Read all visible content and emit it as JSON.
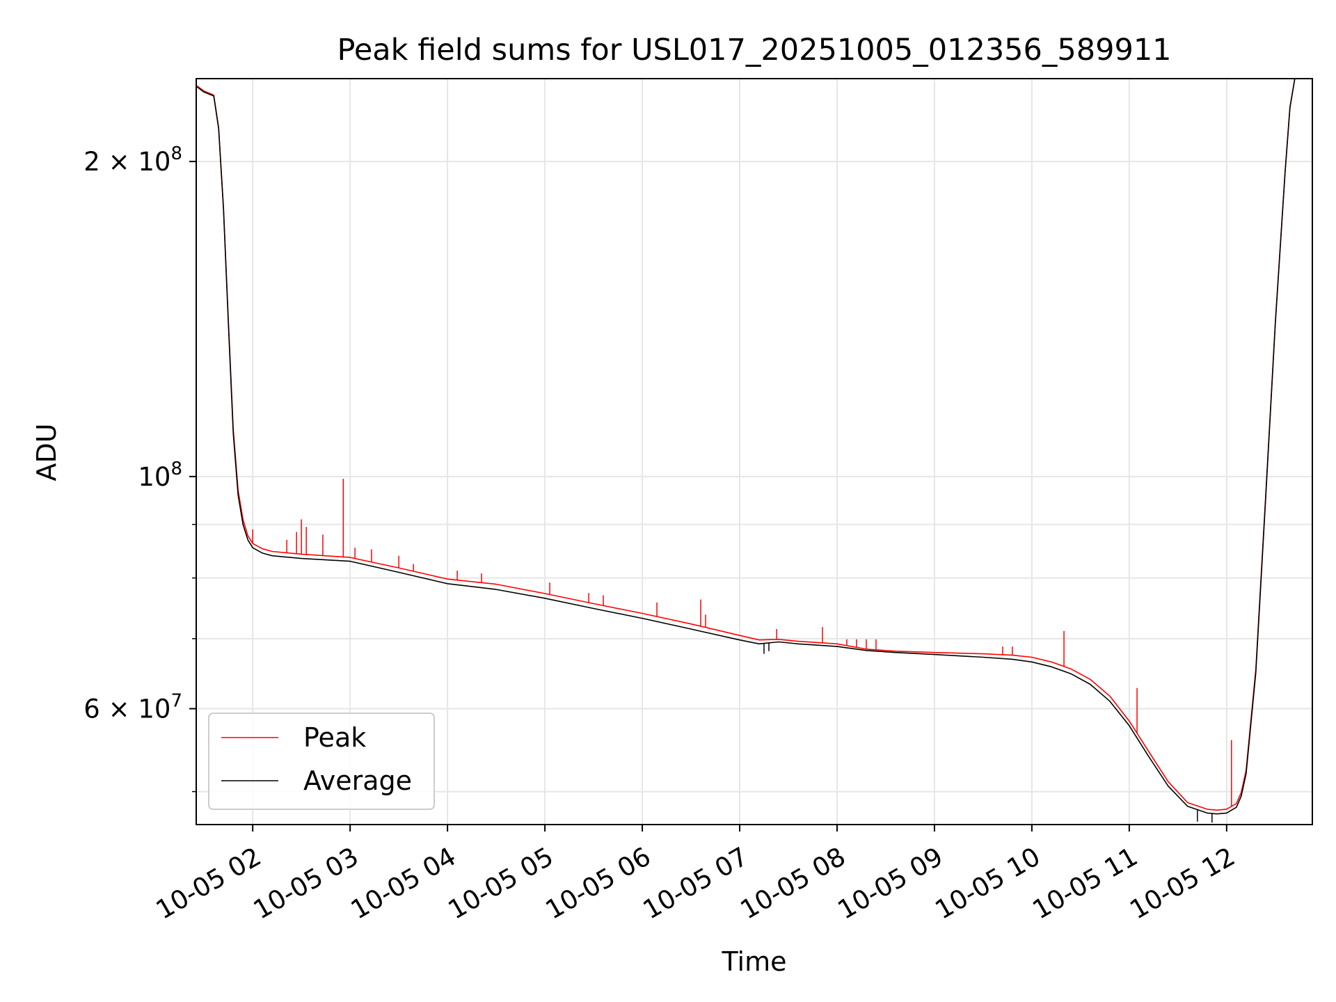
{
  "chart_data": {
    "type": "line",
    "title": "Peak field sums for USL017_20251005_012356_589911",
    "xlabel": "Time",
    "ylabel": "ADU",
    "yscale": "log",
    "xlim": [
      1.42,
      12.88
    ],
    "ylim": [
      46500000,
      240000000
    ],
    "grid": true,
    "x_ticks": [
      {
        "value": 2,
        "label": "10-05 02"
      },
      {
        "value": 3,
        "label": "10-05 03"
      },
      {
        "value": 4,
        "label": "10-05 04"
      },
      {
        "value": 5,
        "label": "10-05 05"
      },
      {
        "value": 6,
        "label": "10-05 06"
      },
      {
        "value": 7,
        "label": "10-05 07"
      },
      {
        "value": 8,
        "label": "10-05 08"
      },
      {
        "value": 9,
        "label": "10-05 09"
      },
      {
        "value": 10,
        "label": "10-05 10"
      },
      {
        "value": 11,
        "label": "10-05 11"
      },
      {
        "value": 12,
        "label": "10-05 12"
      }
    ],
    "y_major_ticks": [
      {
        "value": 200000000,
        "mantissa": "2",
        "times": "×",
        "base": "10",
        "exp": "8"
      },
      {
        "value": 100000000,
        "mantissa": "",
        "times": "",
        "base": "10",
        "exp": "8"
      },
      {
        "value": 60000000,
        "mantissa": "6",
        "times": "×",
        "base": "10",
        "exp": "7"
      }
    ],
    "y_minor_gridlines": [
      50000000,
      70000000,
      80000000,
      90000000
    ],
    "legend": {
      "location": "lower-left",
      "entries": [
        {
          "label": "Peak",
          "color": "#ff0000"
        },
        {
          "label": "Average",
          "color": "#000000"
        }
      ]
    },
    "series": [
      {
        "name": "Average",
        "color": "#000000",
        "x": [
          1.42,
          1.5,
          1.6,
          1.65,
          1.7,
          1.75,
          1.8,
          1.85,
          1.9,
          1.95,
          2.0,
          2.1,
          2.2,
          2.5,
          3.0,
          3.5,
          4.0,
          4.5,
          5.0,
          5.5,
          6.0,
          6.5,
          7.0,
          7.2,
          7.4,
          7.6,
          8.0,
          8.3,
          8.6,
          9.0,
          9.5,
          9.8,
          10.0,
          10.2,
          10.4,
          10.6,
          10.8,
          11.0,
          11.2,
          11.4,
          11.6,
          11.8,
          11.9,
          12.0,
          12.1,
          12.15,
          12.2,
          12.3,
          12.4,
          12.5,
          12.6,
          12.65,
          12.7,
          12.88
        ],
        "values": [
          236000000,
          233000000,
          231000000,
          215000000,
          180000000,
          140000000,
          110000000,
          96000000,
          90000000,
          87000000,
          85500000,
          84500000,
          84000000,
          83500000,
          83000000,
          81000000,
          79000000,
          78000000,
          76500000,
          74800000,
          73200000,
          71500000,
          69800000,
          69200000,
          69500000,
          69200000,
          68800000,
          68200000,
          67900000,
          67600000,
          67200000,
          66900000,
          66500000,
          65800000,
          64800000,
          63300000,
          61000000,
          57800000,
          54000000,
          50600000,
          48400000,
          47700000,
          47600000,
          47700000,
          48300000,
          49500000,
          52000000,
          65000000,
          95000000,
          140000000,
          195000000,
          225000000,
          240000000,
          240000000
        ]
      },
      {
        "name": "Peak",
        "color": "#ff0000",
        "x": [
          1.42,
          1.5,
          1.6,
          1.65,
          1.7,
          1.75,
          1.8,
          1.85,
          1.9,
          1.95,
          2.0,
          2.1,
          2.2,
          2.5,
          3.0,
          3.5,
          4.0,
          4.5,
          5.0,
          5.5,
          6.0,
          6.5,
          7.0,
          7.2,
          7.4,
          7.6,
          8.0,
          8.3,
          8.6,
          9.0,
          9.5,
          9.8,
          10.0,
          10.2,
          10.4,
          10.6,
          10.8,
          11.0,
          11.2,
          11.4,
          11.6,
          11.8,
          11.9,
          12.0,
          12.1,
          12.15,
          12.2,
          12.3,
          12.4,
          12.5,
          12.6,
          12.65,
          12.7,
          12.88
        ],
        "values": [
          236500000,
          233500000,
          231500000,
          215500000,
          180500000,
          141000000,
          111000000,
          97000000,
          91000000,
          87800000,
          86300000,
          85300000,
          84800000,
          84300000,
          83700000,
          81800000,
          79800000,
          78900000,
          77300000,
          75600000,
          74000000,
          72300000,
          70500000,
          69800000,
          69900000,
          69600000,
          69200000,
          68400000,
          68100000,
          67900000,
          67700000,
          67500000,
          67200000,
          66500000,
          65500000,
          64000000,
          61700000,
          58400000,
          54600000,
          51100000,
          48800000,
          48100000,
          48000000,
          48100000,
          48700000,
          49900000,
          52400000,
          65500000,
          95500000,
          140500000,
          195500000,
          225500000,
          240000000,
          240000000
        ]
      }
    ],
    "peak_spikes": [
      {
        "x": 2.0,
        "value": 89000000
      },
      {
        "x": 2.35,
        "value": 87000000
      },
      {
        "x": 2.45,
        "value": 88500000
      },
      {
        "x": 2.5,
        "value": 91000000
      },
      {
        "x": 2.55,
        "value": 89500000
      },
      {
        "x": 2.72,
        "value": 88000000
      },
      {
        "x": 2.93,
        "value": 99500000
      },
      {
        "x": 3.05,
        "value": 85500000
      },
      {
        "x": 3.22,
        "value": 85200000
      },
      {
        "x": 3.5,
        "value": 84000000
      },
      {
        "x": 3.65,
        "value": 82500000
      },
      {
        "x": 4.1,
        "value": 81300000
      },
      {
        "x": 4.35,
        "value": 80800000
      },
      {
        "x": 5.05,
        "value": 79200000
      },
      {
        "x": 5.45,
        "value": 77400000
      },
      {
        "x": 5.6,
        "value": 77000000
      },
      {
        "x": 6.15,
        "value": 75800000
      },
      {
        "x": 6.6,
        "value": 76300000
      },
      {
        "x": 6.65,
        "value": 73800000
      },
      {
        "x": 7.38,
        "value": 71500000
      },
      {
        "x": 7.85,
        "value": 71800000
      },
      {
        "x": 8.1,
        "value": 69900000
      },
      {
        "x": 8.2,
        "value": 69900000
      },
      {
        "x": 8.3,
        "value": 69900000
      },
      {
        "x": 8.4,
        "value": 69900000
      },
      {
        "x": 9.7,
        "value": 68800000
      },
      {
        "x": 9.8,
        "value": 68800000
      },
      {
        "x": 10.33,
        "value": 71200000
      },
      {
        "x": 11.08,
        "value": 62800000
      },
      {
        "x": 12.05,
        "value": 56000000
      }
    ],
    "average_dips": [
      {
        "x": 7.25,
        "value": 67700000
      },
      {
        "x": 7.3,
        "value": 68100000
      },
      {
        "x": 11.7,
        "value": 46800000
      },
      {
        "x": 11.85,
        "value": 46700000
      }
    ]
  }
}
